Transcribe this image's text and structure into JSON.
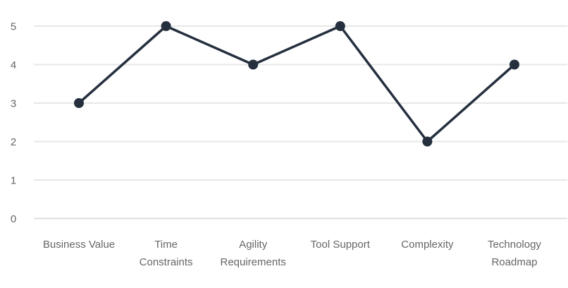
{
  "chart_data": {
    "type": "line",
    "categories": [
      "Business Value",
      "Time Constraints",
      "Agility Requirements",
      "Tool Support",
      "Complexity",
      "Technology Roadmap"
    ],
    "category_lines": [
      [
        "Business Value"
      ],
      [
        "Time",
        "Constraints"
      ],
      [
        "Agility",
        "Requirements"
      ],
      [
        "Tool Support"
      ],
      [
        "Complexity"
      ],
      [
        "Technology",
        "Roadmap"
      ]
    ],
    "values": [
      3,
      5,
      4,
      5,
      2,
      4
    ],
    "yticks": [
      0,
      1,
      2,
      3,
      4,
      5
    ],
    "ylim": [
      0,
      5
    ],
    "title": "",
    "xlabel": "",
    "ylabel": "",
    "grid": true,
    "legend": false,
    "colors": {
      "line": "#252f3e",
      "marker": "#252f3e",
      "grid": "#e7e7e7",
      "zero_line": "#dedede",
      "text": "#666666",
      "background": "#ffffff"
    }
  }
}
